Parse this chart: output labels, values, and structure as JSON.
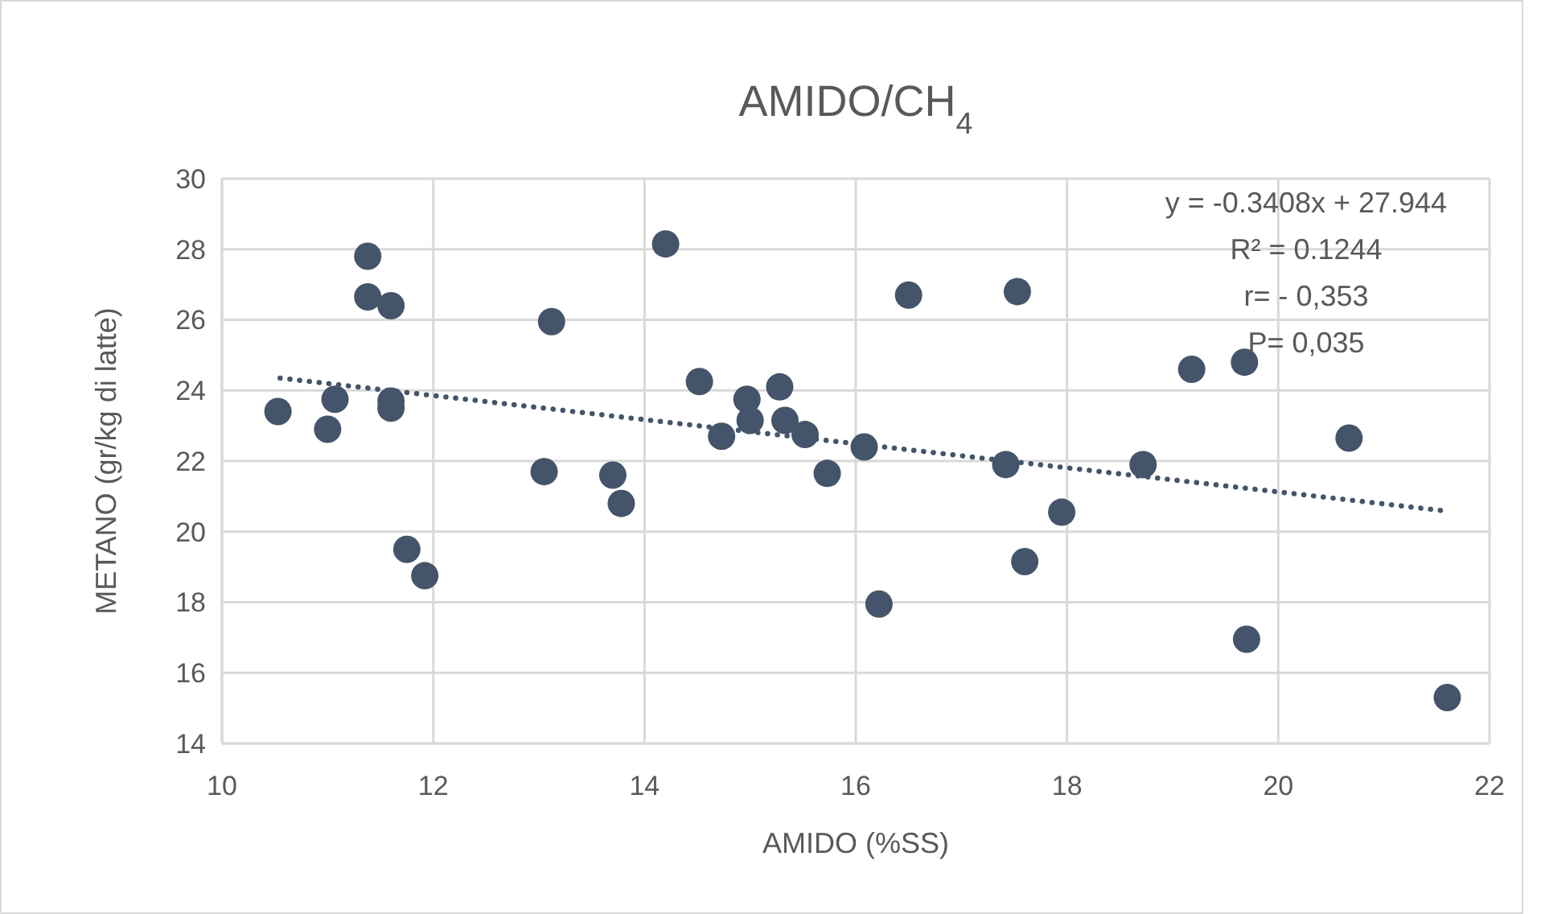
{
  "chart_data": {
    "type": "scatter",
    "title": "AMIDO/CH$_{4}$",
    "xlabel": "AMIDO (%SS)",
    "ylabel": "METANO (gr/kg di latte)",
    "xlim": [
      10,
      22
    ],
    "xticks": [
      10,
      12,
      14,
      16,
      18,
      20,
      22
    ],
    "ylim": [
      14,
      30
    ],
    "yticks": [
      14,
      16,
      18,
      20,
      22,
      24,
      26,
      28,
      30
    ],
    "grid": true,
    "series": [
      {
        "color": "#44546a",
        "marker": "circle",
        "x": [
          10.53,
          11.0,
          11.07,
          11.38,
          11.38,
          11.6,
          11.6,
          11.6,
          11.75,
          11.92,
          13.05,
          13.12,
          13.7,
          13.78,
          14.2,
          14.52,
          14.73,
          14.97,
          15.0,
          15.28,
          15.33,
          15.52,
          15.73,
          16.08,
          16.22,
          16.5,
          17.42,
          17.53,
          17.6,
          17.95,
          18.72,
          19.18,
          19.68,
          19.7,
          20.67,
          21.6
        ],
        "values": [
          23.4,
          22.9,
          23.75,
          27.8,
          26.65,
          26.4,
          23.7,
          23.5,
          19.5,
          18.75,
          21.7,
          25.95,
          21.6,
          20.8,
          28.15,
          24.25,
          22.7,
          23.75,
          23.15,
          24.1,
          23.15,
          22.75,
          21.65,
          22.4,
          17.95,
          26.7,
          21.9,
          26.8,
          19.15,
          20.55,
          21.9,
          24.6,
          24.8,
          16.95,
          22.65,
          15.3
        ]
      },
      {
        "type": "line",
        "color": "#44546a",
        "marker": "none",
        "line_style": "dotted",
        "x": [
          10.55,
          21.6
        ],
        "values": [
          24.35,
          20.58
        ]
      }
    ],
    "annotations": [
      "y = -0.3408x + 27.944",
      "R² = 0.1244",
      "r= - 0,353",
      "P= 0,035"
    ]
  }
}
